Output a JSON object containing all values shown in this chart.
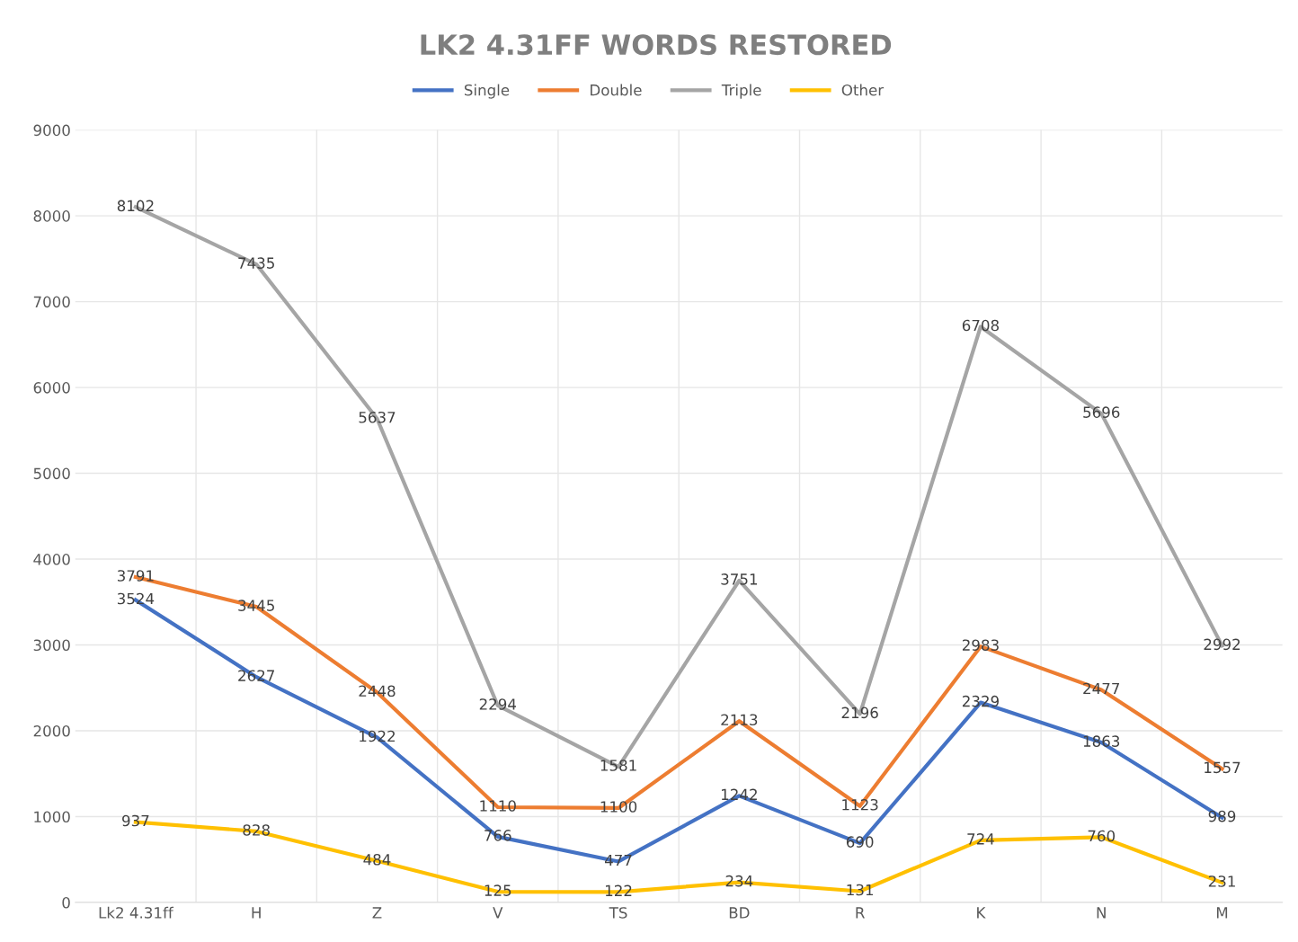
{
  "chart_data": {
    "type": "line",
    "title": "LK2 4.31FF WORDS RESTORED",
    "categories": [
      "Lk2 4.31ff",
      "H",
      "Z",
      "V",
      "TS",
      "BD",
      "R",
      "K",
      "N",
      "M"
    ],
    "series": [
      {
        "name": "Single",
        "color": "#4472c4",
        "values": [
          3524,
          2627,
          1922,
          766,
          477,
          1242,
          690,
          2329,
          1863,
          989
        ]
      },
      {
        "name": "Double",
        "color": "#ed7d31",
        "values": [
          3791,
          3445,
          2448,
          1110,
          1100,
          2113,
          1123,
          2983,
          2477,
          1557
        ]
      },
      {
        "name": "Triple",
        "color": "#a5a5a5",
        "values": [
          8102,
          7435,
          5637,
          2294,
          1581,
          3751,
          2196,
          6708,
          5696,
          2992
        ]
      },
      {
        "name": "Other",
        "color": "#ffc000",
        "values": [
          937,
          828,
          484,
          125,
          122,
          234,
          131,
          724,
          760,
          231
        ]
      }
    ],
    "ylim": [
      0,
      9000
    ],
    "yticks": [
      0,
      1000,
      2000,
      3000,
      4000,
      5000,
      6000,
      7000,
      8000,
      9000
    ],
    "grid": true,
    "legend": "top",
    "data_labels": true,
    "marker": "none",
    "line_style": "solid"
  }
}
